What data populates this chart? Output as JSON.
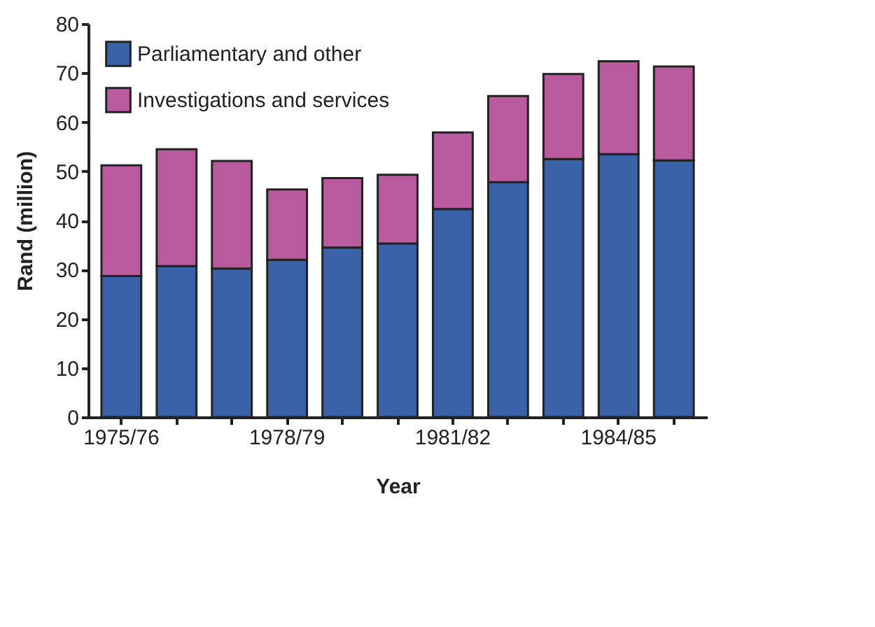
{
  "chart_data": {
    "type": "bar",
    "stacked": true,
    "xlabel": "Year",
    "ylabel": "Rand (million)",
    "categories": [
      "1975/76",
      null,
      null,
      "1978/79",
      null,
      null,
      "1981/82",
      null,
      null,
      "1984/85",
      null
    ],
    "series": [
      {
        "name": "Parliamentary and other",
        "color": "#3a62a8",
        "values": [
          28.7,
          30.7,
          30.2,
          32.0,
          34.5,
          35.3,
          42.3,
          47.8,
          52.5,
          53.5,
          52.2
        ]
      },
      {
        "name": "Investigations and services",
        "color": "#b95a9e",
        "values": [
          22.5,
          23.8,
          21.9,
          14.3,
          14.1,
          14.0,
          15.6,
          17.5,
          17.3,
          18.9,
          19.1
        ]
      }
    ],
    "ylim": [
      0,
      80
    ],
    "yticks": [
      0,
      10,
      20,
      30,
      40,
      50,
      60,
      70,
      80
    ],
    "grid": false,
    "legend": "top left"
  }
}
